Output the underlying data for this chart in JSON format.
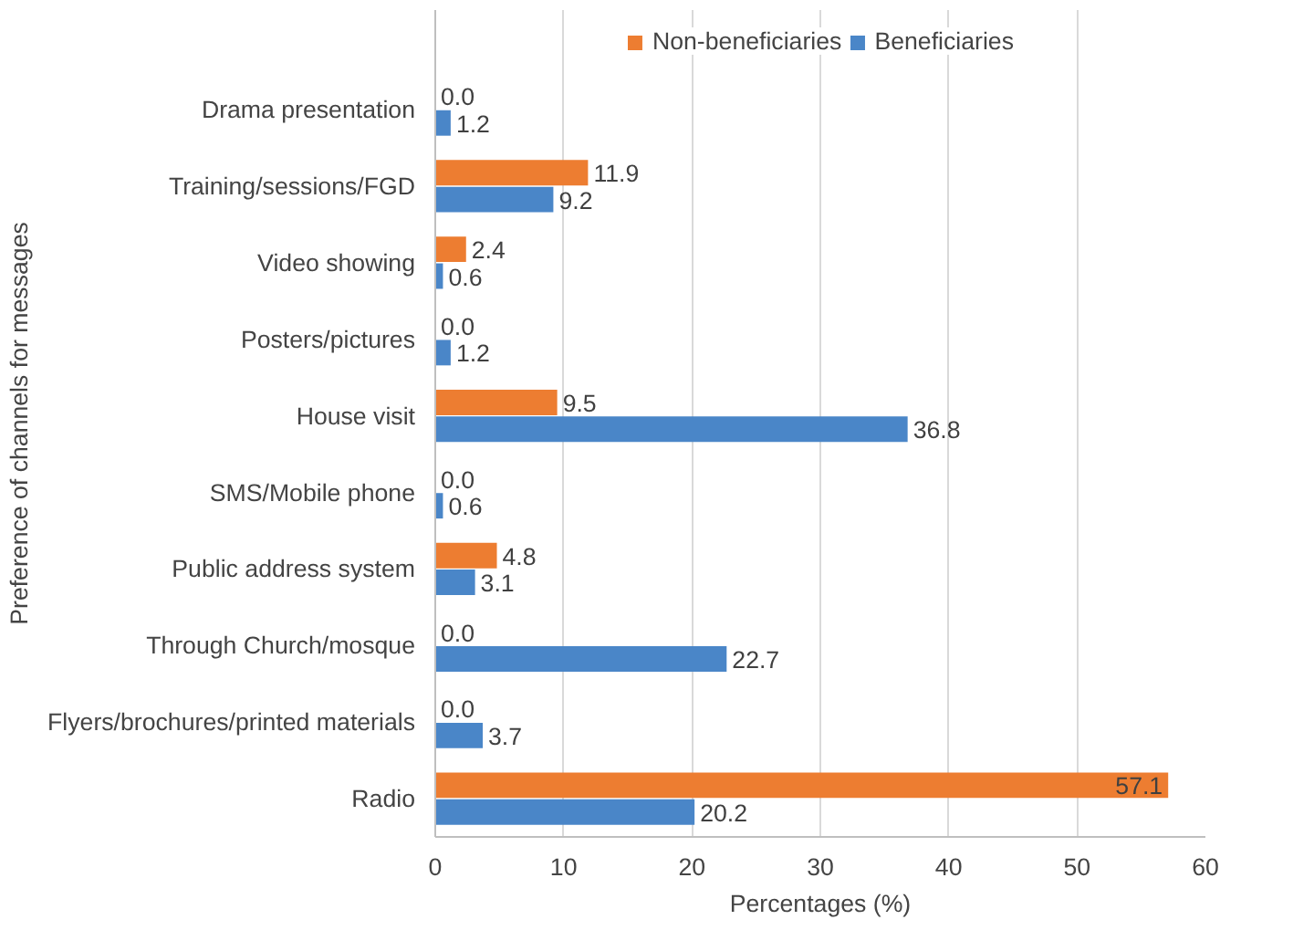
{
  "chart_data": {
    "type": "bar",
    "orientation": "horizontal",
    "categories": [
      "Drama presentation",
      "Training/sessions/FGD",
      "Video showing",
      "Posters/pictures",
      "House visit",
      "SMS/Mobile phone",
      "Public address system",
      "Through Church/mosque",
      "Flyers/brochures/printed materials",
      "Radio"
    ],
    "series": [
      {
        "name": "Non-beneficiaries",
        "color": "#ed7d31",
        "values": [
          0.0,
          11.9,
          2.4,
          0.0,
          9.5,
          0.0,
          4.8,
          0.0,
          0.0,
          57.1
        ],
        "value_labels": [
          "0.0",
          "11.9",
          "2.4",
          "0.0",
          "9.5",
          "0.0",
          "4.8",
          "0.0",
          "0.0",
          "57.1"
        ]
      },
      {
        "name": "Beneficiaries",
        "color": "#4a86c8",
        "values": [
          1.2,
          9.2,
          0.6,
          1.2,
          36.8,
          0.6,
          3.1,
          22.7,
          3.7,
          20.2
        ],
        "value_labels": [
          "1.2",
          "9.2",
          "0.6",
          "1.2",
          "36.8",
          "0.6",
          "3.1",
          "22.7",
          "3.7",
          "20.2"
        ]
      }
    ],
    "xlabel": "Percentages (%)",
    "ylabel": "Preference of channels for messages",
    "xlim": [
      0,
      60
    ],
    "xticks": [
      0,
      10,
      20,
      30,
      40,
      50,
      60
    ],
    "grid": "x",
    "legend": "top"
  }
}
